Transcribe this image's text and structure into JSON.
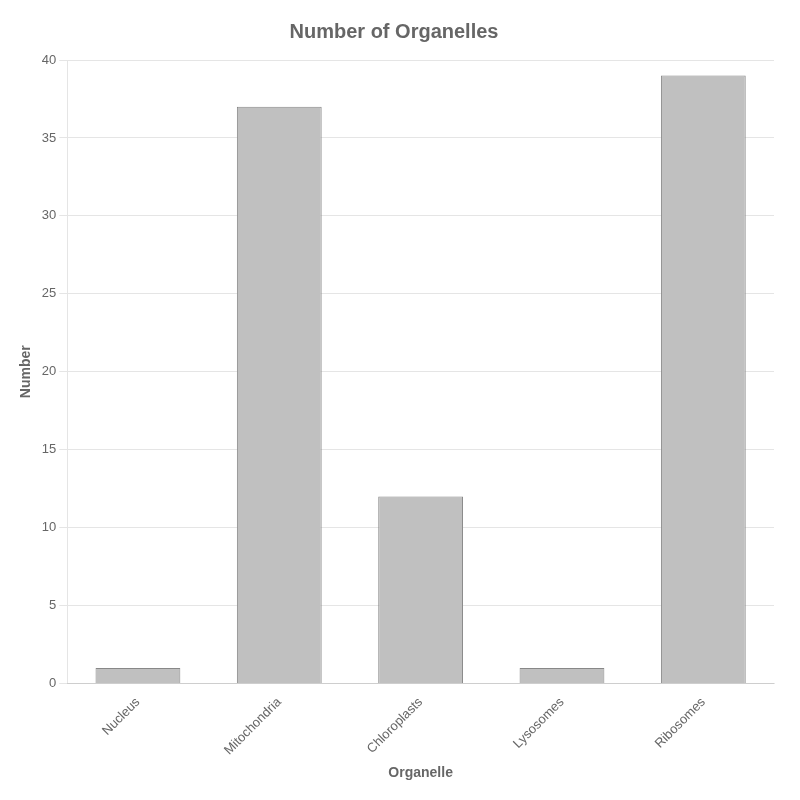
{
  "chart_data": {
    "type": "bar",
    "title": "Number of Organelles",
    "xlabel": "Organelle",
    "ylabel": "Number",
    "categories": [
      "Nucleus",
      "Mitochondria",
      "Chloroplasts",
      "Lysosomes",
      "Ribosomes"
    ],
    "values": [
      1,
      37,
      12,
      1,
      39
    ],
    "color": "#c0c0c0",
    "ylim": [
      0,
      40
    ],
    "yticks": [
      0,
      5,
      10,
      15,
      20,
      25,
      30,
      35,
      40
    ],
    "grid": true
  }
}
